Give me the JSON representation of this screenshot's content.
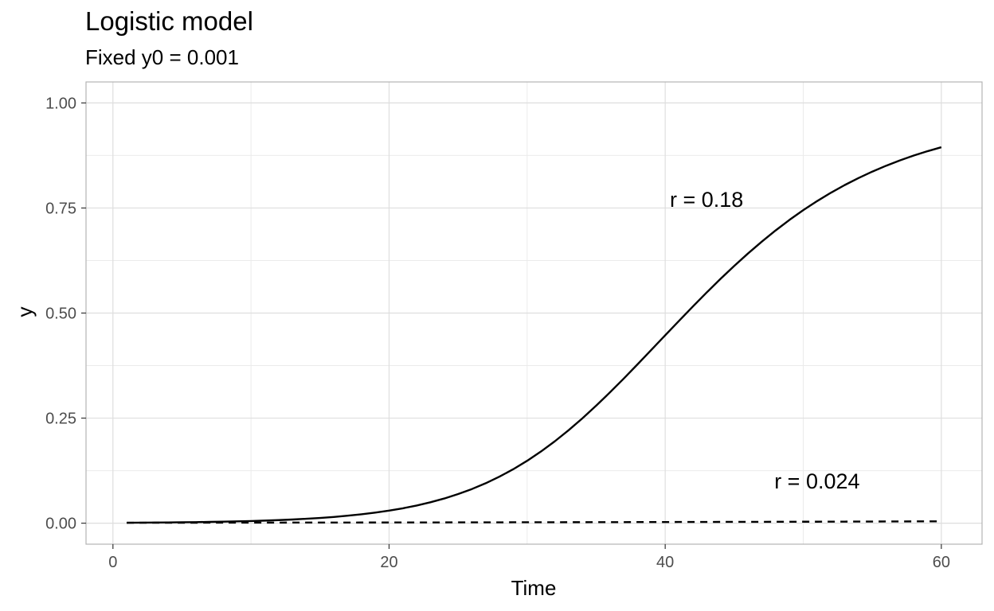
{
  "chart_data": {
    "type": "line",
    "title": "Logistic model",
    "subtitle": "Fixed y0 = 0.001",
    "xlabel": "Time",
    "ylabel": "y",
    "xlim": [
      -1.95,
      62.95
    ],
    "ylim": [
      -0.05,
      1.05
    ],
    "x_ticks": [
      0,
      20,
      40,
      60
    ],
    "x_tick_labels": [
      "0",
      "20",
      "40",
      "60"
    ],
    "y_ticks": [
      0,
      0.25,
      0.5,
      0.75,
      1.0
    ],
    "y_tick_labels": [
      "0.00",
      "0.25",
      "0.50",
      "0.75",
      "1.00"
    ],
    "grid": true,
    "x": [
      1,
      2,
      3,
      4,
      5,
      6,
      7,
      8,
      9,
      10,
      11,
      12,
      13,
      14,
      15,
      16,
      17,
      18,
      19,
      20,
      21,
      22,
      23,
      24,
      25,
      26,
      27,
      28,
      29,
      30,
      31,
      32,
      33,
      34,
      35,
      36,
      37,
      38,
      39,
      40,
      41,
      42,
      43,
      44,
      45,
      46,
      47,
      48,
      49,
      50,
      51,
      52,
      53,
      54,
      55,
      56,
      57,
      58,
      59,
      60
    ],
    "series": [
      {
        "r": 0.18,
        "linestyle": "solid",
        "values": [
          0.001,
          0.0012,
          0.0014,
          0.0017,
          0.0021,
          0.0025,
          0.003,
          0.0036,
          0.0043,
          0.0051,
          0.0061,
          0.0073,
          0.0087,
          0.0104,
          0.0124,
          0.0148,
          0.0177,
          0.0211,
          0.0251,
          0.0298,
          0.0354,
          0.042,
          0.0497,
          0.0587,
          0.0692,
          0.0812,
          0.095,
          0.1108,
          0.1285,
          0.1484,
          0.1705,
          0.1947,
          0.2211,
          0.2494,
          0.2796,
          0.3113,
          0.3442,
          0.3781,
          0.4125,
          0.4471,
          0.4815,
          0.5155,
          0.5488,
          0.5811,
          0.6122,
          0.6419,
          0.6701,
          0.6967,
          0.7217,
          0.7449,
          0.7664,
          0.7863,
          0.8046,
          0.8213,
          0.8366,
          0.8506,
          0.8633,
          0.8748,
          0.8852,
          0.8946
        ]
      },
      {
        "r": 0.024,
        "linestyle": "dashed",
        "values": [
          0.001,
          0.001,
          0.0011,
          0.0011,
          0.0011,
          0.0011,
          0.0012,
          0.0012,
          0.0012,
          0.0013,
          0.0013,
          0.0013,
          0.0014,
          0.0014,
          0.0014,
          0.0015,
          0.0015,
          0.0016,
          0.0016,
          0.0016,
          0.0017,
          0.0017,
          0.0018,
          0.0018,
          0.0019,
          0.0019,
          0.002,
          0.002,
          0.0021,
          0.0021,
          0.0022,
          0.0022,
          0.0023,
          0.0023,
          0.0024,
          0.0025,
          0.0025,
          0.0026,
          0.0027,
          0.0027,
          0.0028,
          0.0029,
          0.0029,
          0.003,
          0.0031,
          0.0031,
          0.0032,
          0.0033,
          0.0034,
          0.0035,
          0.0035,
          0.0036,
          0.0037,
          0.0038,
          0.0039,
          0.004,
          0.0041,
          0.0042,
          0.0043,
          0.0044
        ]
      }
    ],
    "annotations": [
      {
        "text": "r = 0.18",
        "x": 43,
        "y": 0.77
      },
      {
        "text": "r = 0.024",
        "x": 51,
        "y": 0.1
      }
    ]
  }
}
